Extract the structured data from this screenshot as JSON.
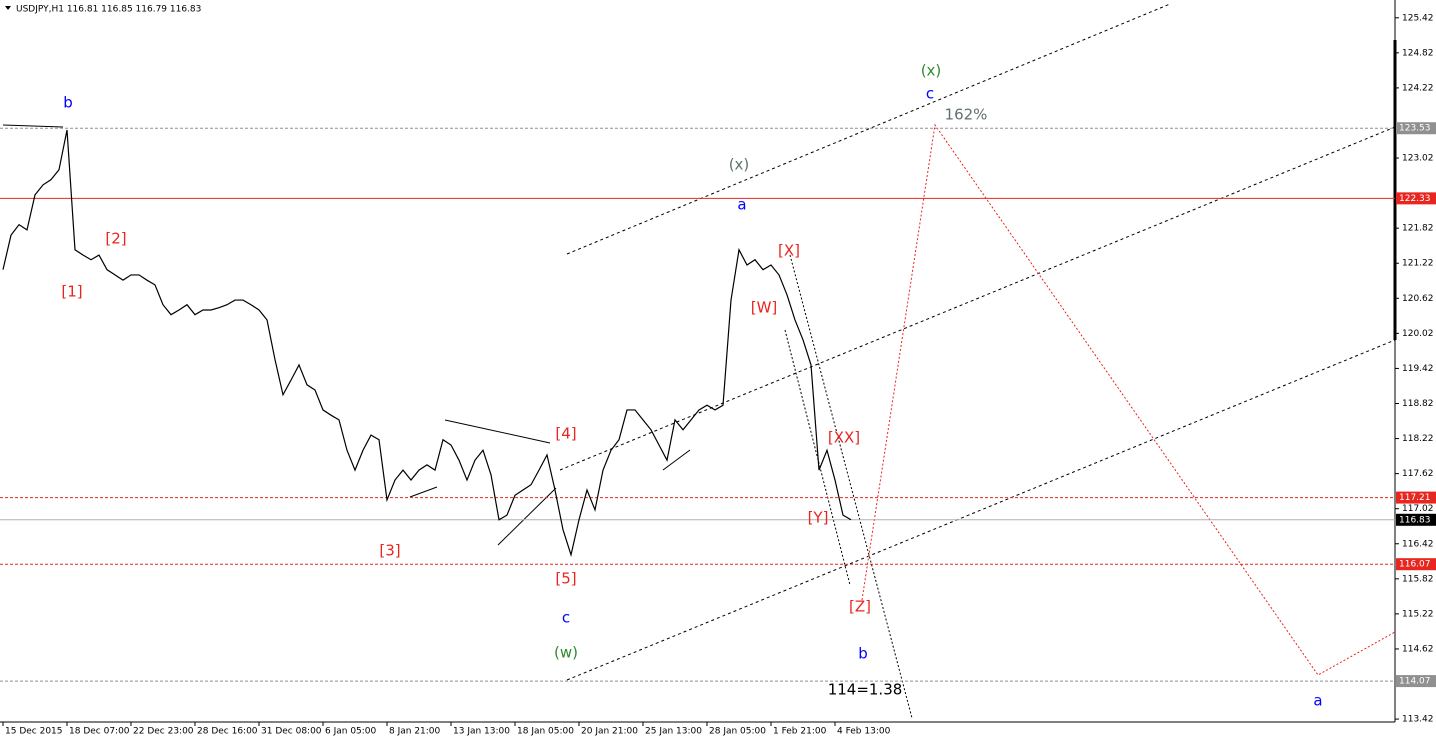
{
  "chart_data": {
    "type": "line",
    "title": "USDJPY,H1  116.81 116.85 116.79 116.83",
    "categories": [
      "15 Dec 2015",
      null,
      null,
      null,
      null,
      null,
      null,
      null,
      "18 Dec 07:00",
      null,
      null,
      null,
      null,
      null,
      null,
      null,
      "22 Dec 23:00",
      null,
      null,
      null,
      null,
      null,
      null,
      null,
      "28 Dec 16:00",
      null,
      null,
      null,
      null,
      null,
      null,
      null,
      "31 Dec 08:00",
      null,
      null,
      null,
      null,
      null,
      null,
      null,
      "6 Jan 05:00",
      null,
      null,
      null,
      null,
      null,
      null,
      null,
      "8 Jan 21:00",
      null,
      null,
      null,
      null,
      null,
      null,
      null,
      "13 Jan 13:00",
      null,
      null,
      null,
      null,
      null,
      null,
      null,
      "18 Jan 05:00",
      null,
      null,
      null,
      null,
      null,
      null,
      null,
      "20 Jan 21:00",
      null,
      null,
      null,
      null,
      null,
      null,
      null,
      "25 Jan 13:00",
      null,
      null,
      null,
      null,
      null,
      null,
      null,
      "28 Jan 05:00",
      null,
      null,
      null,
      null,
      null,
      null,
      null,
      "1 Feb 21:00",
      null,
      null,
      null,
      null,
      null,
      null,
      null,
      "4 Feb 13:00",
      null,
      null
    ],
    "series": [
      {
        "color": "#000000",
        "values": [
          121.11,
          121.7,
          121.88,
          121.79,
          122.39,
          122.56,
          122.65,
          122.82,
          123.5,
          121.45,
          121.36,
          121.28,
          121.36,
          121.11,
          121.02,
          120.93,
          121.02,
          121.02,
          120.93,
          120.85,
          120.51,
          120.34,
          120.42,
          120.51,
          120.34,
          120.42,
          120.42,
          120.46,
          120.51,
          120.59,
          120.59,
          120.51,
          120.42,
          120.25,
          119.57,
          118.97,
          119.22,
          119.48,
          119.14,
          119.05,
          118.71,
          118.62,
          118.54,
          118.02,
          117.68,
          118.02,
          118.28,
          118.2,
          117.17,
          117.51,
          117.68,
          117.51,
          117.68,
          117.77,
          117.68,
          118.2,
          118.11,
          117.85,
          117.51,
          117.85,
          118.02,
          117.6,
          116.83,
          116.91,
          117.25,
          117.34,
          117.43,
          117.68,
          117.94,
          117.34,
          116.66,
          116.23,
          116.83,
          117.34,
          117.0,
          117.68,
          118.02,
          118.2,
          118.71,
          118.71,
          118.54,
          118.37,
          118.11,
          117.85,
          118.54,
          118.37,
          118.54,
          118.71,
          118.79,
          118.71,
          118.79,
          120.59,
          121.45,
          121.19,
          121.28,
          121.11,
          121.19,
          121.02,
          120.68,
          120.25,
          119.91,
          119.48,
          117.68,
          118.02,
          117.51,
          116.91,
          116.83
        ]
      }
    ],
    "ylim": [
      113.37,
      125.69
    ],
    "yticks": [
      125.42,
      124.82,
      124.22,
      123.02,
      121.82,
      121.22,
      120.62,
      120.02,
      119.42,
      118.82,
      118.22,
      117.62,
      117.02,
      116.42,
      115.82,
      115.22,
      114.62,
      113.42
    ],
    "levels": [
      {
        "value": 123.53,
        "color": "#909090",
        "dashed": true
      },
      {
        "value": 122.33,
        "color": "#e8251f",
        "dashed": false
      },
      {
        "value": 117.21,
        "color": "#e8251f",
        "dashed": true
      },
      {
        "value": 116.83,
        "color": "#000000",
        "dashed": false
      },
      {
        "value": 116.07,
        "color": "#e8251f",
        "dashed": true
      },
      {
        "value": 114.07,
        "color": "#909090",
        "dashed": true
      }
    ],
    "annotations": [
      {
        "text": "b",
        "color": "#0000ff"
      },
      {
        "text": "[2]",
        "color": "#e8251f"
      },
      {
        "text": "[1]",
        "color": "#e8251f"
      },
      {
        "text": "[3]",
        "color": "#e8251f"
      },
      {
        "text": "[4]",
        "color": "#e8251f"
      },
      {
        "text": "[5]",
        "color": "#e8251f"
      },
      {
        "text": "c",
        "color": "#0000ff"
      },
      {
        "text": "(w)",
        "color": "#2e8b2e"
      },
      {
        "text": "(x)",
        "color": "#607070"
      },
      {
        "text": "a",
        "color": "#0000ff"
      },
      {
        "text": "[X]",
        "color": "#e8251f"
      },
      {
        "text": "[W]",
        "color": "#e8251f"
      },
      {
        "text": "[XX]",
        "color": "#e8251f"
      },
      {
        "text": "[Y]",
        "color": "#e8251f"
      },
      {
        "text": "[Z]",
        "color": "#e8251f"
      },
      {
        "text": "b",
        "color": "#0000ff"
      },
      {
        "text": "(x)",
        "color": "#2e8b2e"
      },
      {
        "text": "c",
        "color": "#0000ff"
      },
      {
        "text": "162%",
        "color": "#607070"
      },
      {
        "text": "114=1.38",
        "color": "#000000"
      },
      {
        "text": "a",
        "color": "#0000ff"
      }
    ]
  }
}
